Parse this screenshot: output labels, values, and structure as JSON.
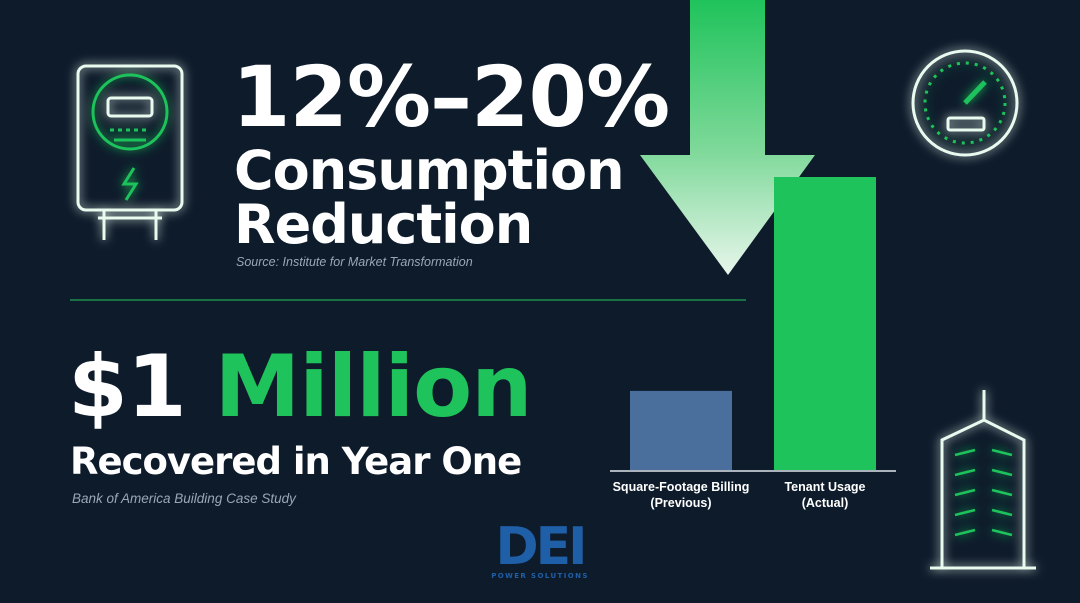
{
  "headline": {
    "range": "12%–20%",
    "line2": "Consumption",
    "line3": "Reduction",
    "source": "Source: Institute for Market Transformation"
  },
  "savings": {
    "amount": "$1",
    "amount_highlight": "Million",
    "subtitle": "Recovered in Year One",
    "source": "Bank of America Building Case Study"
  },
  "logo": {
    "mark": "DEI",
    "tagline": "POWER SOLUTIONS"
  },
  "chart_data": {
    "type": "bar",
    "categories": [
      "Square-Footage Billing (Previous)",
      "Tenant Usage (Actual)"
    ],
    "values": [
      27,
      100
    ],
    "colors": [
      "#4b6f9c",
      "#1fc35b"
    ],
    "ylim": [
      0,
      100
    ]
  }
}
